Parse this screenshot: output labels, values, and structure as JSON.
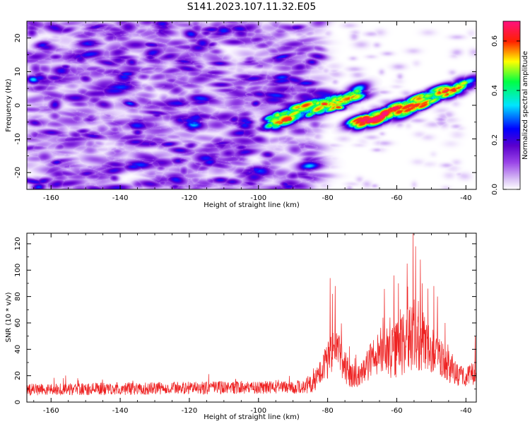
{
  "figure_title": "S141.2023.107.11.32.E05",
  "colors": {
    "snr_line": "#ee2222",
    "axis": "#000000",
    "background": "#ffffff"
  },
  "chart_data": [
    {
      "type": "heatmap",
      "name": "spectrogram",
      "title": "",
      "xlabel": "Height of straight line (km)",
      "ylabel": "Frequency (Hz)",
      "xlim": [
        -167,
        -37
      ],
      "ylim": [
        -25,
        25
      ],
      "x_ticks": [
        -160,
        -140,
        -120,
        -100,
        -80,
        -60,
        -40
      ],
      "y_ticks": [
        -20,
        -10,
        0,
        10,
        20
      ],
      "colorbar": {
        "label": "Normalized spectral amplitude",
        "range": [
          0,
          0.68
        ],
        "ticks": [
          "0.0",
          "0.2",
          "0.4",
          "0.6"
        ],
        "tick_values": [
          0.0,
          0.2,
          0.4,
          0.6
        ],
        "colormap": [
          "#ffffff",
          "#d9c0f5",
          "#9a44e8",
          "#5a00cc",
          "#0000ff",
          "#00e5ff",
          "#00ff44",
          "#ffff00",
          "#ff2000",
          "#ff1080"
        ]
      },
      "features": [
        {
          "name": "noise-field",
          "x_range": [
            -167,
            -88
          ],
          "y_range": [
            -25,
            25
          ],
          "amplitude": 0.08
        },
        {
          "name": "band-a",
          "from": [
            -97,
            -5
          ],
          "to": [
            -70,
            4
          ],
          "amplitude": 0.3
        },
        {
          "name": "band-b",
          "from": [
            -72,
            -6
          ],
          "to": [
            -40,
            6
          ],
          "amplitude": 0.35
        },
        {
          "name": "peak-1",
          "x": -81,
          "y": 0.5,
          "amplitude": 0.62
        },
        {
          "name": "peak-2",
          "x": -77,
          "y": -0.5,
          "amplitude": 0.58
        },
        {
          "name": "peak-3",
          "x": -55,
          "y": 0,
          "amplitude": 0.4
        },
        {
          "name": "peak-4",
          "x": -68,
          "y": -4.5,
          "amplitude": 0.34
        }
      ]
    },
    {
      "type": "line",
      "name": "snr",
      "title": "",
      "xlabel": "Height of straight line (km)",
      "ylabel": "SNR (10 * v/v)",
      "xlim": [
        -167,
        -37
      ],
      "ylim": [
        0,
        128
      ],
      "x_ticks": [
        -160,
        -140,
        -120,
        -100,
        -80,
        -60,
        -40
      ],
      "y_ticks": [
        0,
        20,
        40,
        60,
        80,
        100,
        120
      ],
      "series": [
        {
          "name": "SNR",
          "color": "#ee2222"
        }
      ],
      "profile_x": [
        -167,
        -88,
        -84,
        -82,
        -80,
        -78,
        -76,
        -74,
        -72,
        -70,
        -68,
        -66,
        -64,
        -62,
        -60,
        -58,
        -56,
        -55,
        -54,
        -52,
        -50,
        -48,
        -46,
        -44,
        -42,
        -40,
        -38,
        -37
      ],
      "profile_base": [
        9,
        11,
        14,
        22,
        30,
        38,
        30,
        22,
        18,
        20,
        28,
        34,
        40,
        34,
        38,
        42,
        46,
        48,
        46,
        42,
        40,
        36,
        28,
        24,
        20,
        18,
        20,
        22
      ],
      "profile_noise": [
        7,
        8,
        12,
        16,
        22,
        30,
        24,
        18,
        12,
        14,
        20,
        26,
        30,
        28,
        34,
        38,
        40,
        42,
        38,
        34,
        30,
        26,
        20,
        18,
        14,
        12,
        14,
        16
      ],
      "spikes": [
        {
          "x": -79.3,
          "y": 94
        },
        {
          "x": -77.8,
          "y": 88
        },
        {
          "x": -78.6,
          "y": 82
        },
        {
          "x": -64.0,
          "y": 64
        },
        {
          "x": -60.8,
          "y": 96
        },
        {
          "x": -59.5,
          "y": 90
        },
        {
          "x": -57.0,
          "y": 105
        },
        {
          "x": -55.3,
          "y": 128
        },
        {
          "x": -54.6,
          "y": 118
        },
        {
          "x": -53.2,
          "y": 108
        },
        {
          "x": -52.6,
          "y": 90
        },
        {
          "x": -51.0,
          "y": 86
        },
        {
          "x": -49.3,
          "y": 88
        },
        {
          "x": -48.2,
          "y": 80
        },
        {
          "x": -46.0,
          "y": 60
        },
        {
          "x": -37.3,
          "y": 50
        }
      ],
      "n_points": 1600
    }
  ]
}
